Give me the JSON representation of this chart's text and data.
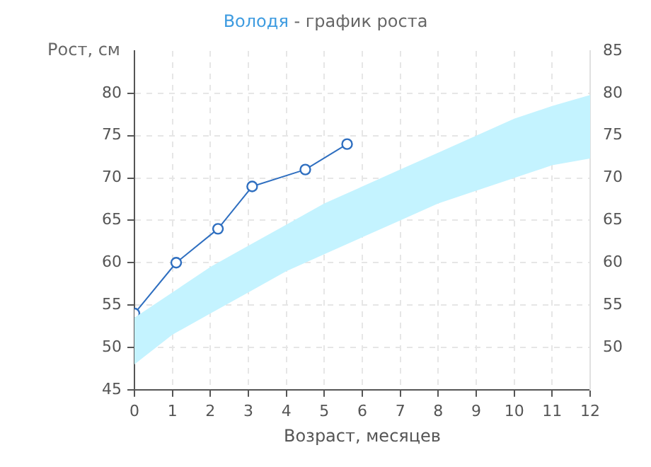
{
  "chart_data": {
    "type": "line",
    "title": "Володя - график роста",
    "ylabel": "Рост, см",
    "xlabel": "Возраст, месяцев",
    "xlim": [
      0,
      12
    ],
    "xticks": [
      0,
      1,
      2,
      3,
      4,
      5,
      6,
      7,
      8,
      9,
      10,
      11,
      12
    ],
    "ylim": [
      45,
      85
    ],
    "yticks": [
      45,
      50,
      55,
      60,
      65,
      70,
      75,
      80
    ],
    "y2lim": [
      45,
      85
    ],
    "y2ticks": [
      50,
      55,
      60,
      65,
      70,
      75,
      80,
      85
    ],
    "grid": true,
    "legend": false,
    "marker": "circle",
    "line_style": "solid",
    "series": [
      {
        "type": "area",
        "color": "#c4f3ff",
        "x": [
          0,
          1,
          2,
          3,
          4,
          5,
          6,
          7,
          8,
          9,
          10,
          11,
          12
        ],
        "values": [
          null,
          null,
          null,
          null,
          null,
          null,
          null,
          null,
          null,
          null,
          null,
          null,
          null
        ],
        "lower": [
          48,
          51.5,
          54,
          56.5,
          59,
          61,
          63,
          65,
          67,
          68.5,
          70,
          71.5,
          72.3
        ],
        "upper": [
          53.5,
          56.5,
          59.5,
          62,
          64.5,
          67,
          69,
          71,
          73,
          75,
          77,
          78.5,
          79.8
        ]
      },
      {
        "color": "#2f6fc0",
        "x": [
          0,
          1.1,
          2.2,
          3.1,
          4.5,
          5.6
        ],
        "values": [
          54,
          60,
          64,
          69,
          71,
          74
        ]
      }
    ]
  }
}
